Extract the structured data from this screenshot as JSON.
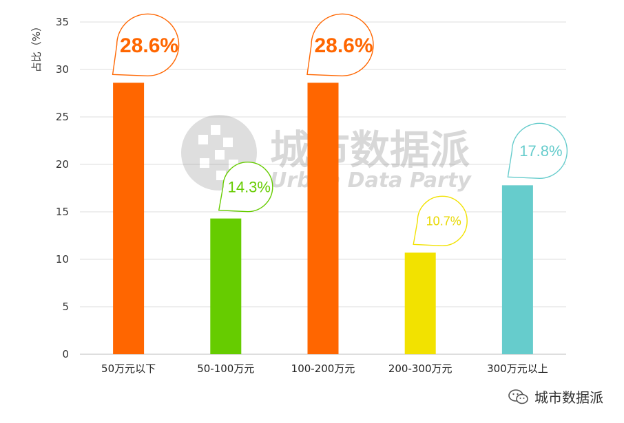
{
  "chart_data": {
    "type": "bar",
    "ylabel": "占比（%）",
    "ylim": [
      0,
      35
    ],
    "yticks": [
      0,
      5,
      10,
      15,
      20,
      25,
      30,
      35
    ],
    "grid": true,
    "categories": [
      "50万元以下",
      "50-100万元",
      "100-200万元",
      "200-300万元",
      "300万元以上"
    ],
    "values": [
      28.6,
      14.3,
      28.6,
      10.7,
      17.8
    ],
    "data_labels": [
      "28.6%",
      "14.3%",
      "28.6%",
      "10.7%",
      "17.8%"
    ],
    "colors": [
      "#ff6600",
      "#66cc00",
      "#ff6600",
      "#f2e200",
      "#66cccc"
    ]
  },
  "watermark": {
    "title": "城市数据派",
    "subtitle": "Urban Data Party"
  },
  "footer": {
    "icon": "wechat-icon",
    "text": "城市数据派"
  }
}
